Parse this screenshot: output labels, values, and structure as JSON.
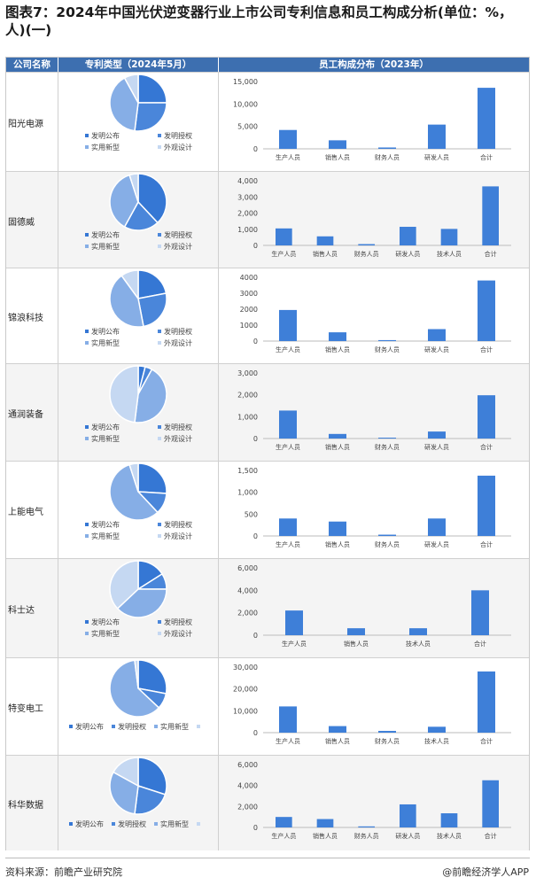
{
  "title": "图表7：2024年中国光伏逆变器行业上市公司专利信息和员工构成分析(单位：%，人)(一)",
  "headers": {
    "company": "公司名称",
    "patent": "专利类型（2024年5月）",
    "staff": "员工构成分布（2023年）"
  },
  "pie_legend": [
    "发明公布",
    "发明授权",
    "实用新型",
    "外观设计"
  ],
  "colors": {
    "header": "#3d6fb0",
    "bar": "#3e7fd8",
    "pie": [
      "#3577d4",
      "#4a86da",
      "#86aee6",
      "#c5d8f2"
    ]
  },
  "footer": {
    "source": "资料来源：前瞻产业研究院",
    "brand": "@前瞻经济学人APP"
  },
  "chart_data": [
    {
      "company": "阳光电源",
      "type": "bar+pie",
      "pie": [
        {
          "label": "发明公布",
          "value": 25
        },
        {
          "label": "发明授权",
          "value": 27
        },
        {
          "label": "实用新型",
          "value": 40
        },
        {
          "label": "外观设计",
          "value": 8
        }
      ],
      "categories": [
        "生产人员",
        "销售人员",
        "财务人员",
        "研发人员",
        "合计"
      ],
      "values": [
        4200,
        1900,
        300,
        5400,
        13600
      ],
      "yticks": [
        "15,000",
        "10,000",
        "5,000",
        "0"
      ],
      "ylim": [
        0,
        15000
      ]
    },
    {
      "company": "固德威",
      "type": "bar+pie",
      "pie": [
        {
          "label": "发明公布",
          "value": 38
        },
        {
          "label": "发明授权",
          "value": 20
        },
        {
          "label": "实用新型",
          "value": 37
        },
        {
          "label": "外观设计",
          "value": 5
        }
      ],
      "categories": [
        "生产人员",
        "销售人员",
        "财务人员",
        "研发人员",
        "技术人员",
        "合计"
      ],
      "values": [
        1050,
        560,
        80,
        1150,
        1020,
        3650
      ],
      "yticks": [
        "4,000",
        "3,000",
        "2,000",
        "1,000",
        "0"
      ],
      "ylim": [
        0,
        4000
      ]
    },
    {
      "company": "锦浪科技",
      "type": "bar+pie",
      "pie": [
        {
          "label": "发明公布",
          "value": 22
        },
        {
          "label": "发明授权",
          "value": 25
        },
        {
          "label": "实用新型",
          "value": 43
        },
        {
          "label": "外观设计",
          "value": 10
        }
      ],
      "categories": [
        "生产人员",
        "销售人员",
        "财务人员",
        "研发人员",
        "合计"
      ],
      "values": [
        1950,
        550,
        60,
        750,
        3800
      ],
      "yticks": [
        "4000",
        "3000",
        "2000",
        "1000",
        "0"
      ],
      "ylim": [
        0,
        4000
      ]
    },
    {
      "company": "通润装备",
      "type": "bar+pie",
      "pie": [
        {
          "label": "发明公布",
          "value": 4
        },
        {
          "label": "发明授权",
          "value": 4
        },
        {
          "label": "实用新型",
          "value": 44
        },
        {
          "label": "外观设计",
          "value": 48
        }
      ],
      "categories": [
        "生产人员",
        "销售人员",
        "财务人员",
        "研发人员",
        "合计"
      ],
      "values": [
        1280,
        210,
        40,
        320,
        1980
      ],
      "yticks": [
        "3,000",
        "2,000",
        "1,000",
        "0"
      ],
      "ylim": [
        0,
        3000
      ]
    },
    {
      "company": "上能电气",
      "type": "bar+pie",
      "pie": [
        {
          "label": "发明公布",
          "value": 26
        },
        {
          "label": "发明授权",
          "value": 12
        },
        {
          "label": "实用新型",
          "value": 57
        },
        {
          "label": "外观设计",
          "value": 5
        }
      ],
      "categories": [
        "生产人员",
        "销售人员",
        "财务人员",
        "研发人员",
        "合计"
      ],
      "values": [
        400,
        330,
        30,
        400,
        1380
      ],
      "yticks": [
        "1,500",
        "1,000",
        "500",
        "0"
      ],
      "ylim": [
        0,
        1500
      ]
    },
    {
      "company": "科士达",
      "type": "bar+pie",
      "pie": [
        {
          "label": "发明公布",
          "value": 16
        },
        {
          "label": "发明授权",
          "value": 9
        },
        {
          "label": "实用新型",
          "value": 38
        },
        {
          "label": "外观设计",
          "value": 37
        }
      ],
      "categories": [
        "生产人员",
        "销售人员",
        "技术人员",
        "合计"
      ],
      "values": [
        2200,
        620,
        620,
        4000
      ],
      "yticks": [
        "6,000",
        "4,000",
        "2,000",
        "0"
      ],
      "ylim": [
        0,
        6000
      ]
    },
    {
      "company": "特变电工",
      "type": "bar+pie",
      "pie": [
        {
          "label": "发明公布",
          "value": 28
        },
        {
          "label": "发明授权",
          "value": 9
        },
        {
          "label": "实用新型",
          "value": 61
        },
        {
          "label": "外观设计",
          "value": 2
        }
      ],
      "categories": [
        "生产人员",
        "销售人员",
        "财务人员",
        "技术人员",
        "合计"
      ],
      "values": [
        12000,
        3000,
        800,
        2700,
        28000
      ],
      "yticks": [
        "30,000",
        "20,000",
        "10,000",
        "0"
      ],
      "ylim": [
        0,
        30000
      ]
    },
    {
      "company": "科华数据",
      "type": "bar+pie",
      "pie": [
        {
          "label": "发明公布",
          "value": 30
        },
        {
          "label": "发明授权",
          "value": 22
        },
        {
          "label": "实用新型",
          "value": 31
        },
        {
          "label": "外观设计",
          "value": 17
        }
      ],
      "categories": [
        "生产人员",
        "销售人员",
        "财务人员",
        "研发人员",
        "技术人员",
        "合计"
      ],
      "values": [
        1000,
        800,
        100,
        2200,
        1350,
        4500
      ],
      "yticks": [
        "6,000",
        "4,000",
        "2,000",
        "0"
      ],
      "ylim": [
        0,
        6000
      ]
    }
  ]
}
